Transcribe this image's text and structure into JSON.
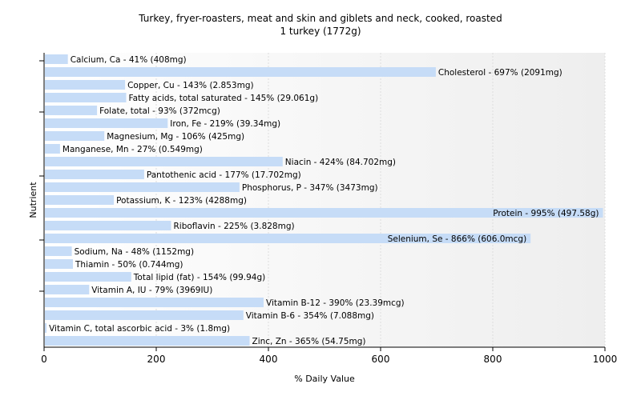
{
  "chart_data": {
    "type": "bar",
    "orientation": "horizontal",
    "title": "Turkey, fryer-roasters, meat and skin and giblets and neck, cooked, roasted",
    "subtitle": "1 turkey (1772g)",
    "xlabel": "% Daily Value",
    "ylabel": "Nutrient",
    "xlim": [
      0,
      1000
    ],
    "xticks": [
      "0",
      "200",
      "400",
      "600",
      "800",
      "1000"
    ],
    "grid": true,
    "bar_color": "#c6dcf7",
    "categories": [
      "Calcium, Ca",
      "Cholesterol",
      "Copper, Cu",
      "Fatty acids, total saturated",
      "Folate, total",
      "Iron, Fe",
      "Magnesium, Mg",
      "Manganese, Mn",
      "Niacin",
      "Pantothenic acid",
      "Phosphorus, P",
      "Potassium, K",
      "Protein",
      "Riboflavin",
      "Selenium, Se",
      "Sodium, Na",
      "Thiamin",
      "Total lipid (fat)",
      "Vitamin A, IU",
      "Vitamin B-12",
      "Vitamin B-6",
      "Vitamin C, total ascorbic acid",
      "Zinc, Zn"
    ],
    "values": [
      41,
      697,
      143,
      145,
      93,
      219,
      106,
      27,
      424,
      177,
      347,
      123,
      995,
      225,
      866,
      48,
      50,
      154,
      79,
      390,
      354,
      3,
      365
    ],
    "labels": [
      "Calcium, Ca - 41% (408mg)",
      "Cholesterol - 697% (2091mg)",
      "Copper, Cu - 143% (2.853mg)",
      "Fatty acids, total saturated - 145% (29.061g)",
      "Folate, total - 93% (372mcg)",
      "Iron, Fe - 219% (39.34mg)",
      "Magnesium, Mg - 106% (425mg)",
      "Manganese, Mn - 27% (0.549mg)",
      "Niacin - 424% (84.702mg)",
      "Pantothenic acid - 177% (17.702mg)",
      "Phosphorus, P - 347% (3473mg)",
      "Potassium, K - 123% (4288mg)",
      "Protein - 995% (497.58g)",
      "Riboflavin - 225% (3.828mg)",
      "Selenium, Se - 866% (606.0mcg)",
      "Sodium, Na - 48% (1152mg)",
      "Thiamin - 50% (0.744mg)",
      "Total lipid (fat) - 154% (99.94g)",
      "Vitamin A, IU - 79% (3969IU)",
      "Vitamin B-12 - 390% (23.39mcg)",
      "Vitamin B-6 - 354% (7.088mg)",
      "Vitamin C, total ascorbic acid - 3% (1.8mg)",
      "Zinc, Zn - 365% (54.75mg)"
    ]
  }
}
